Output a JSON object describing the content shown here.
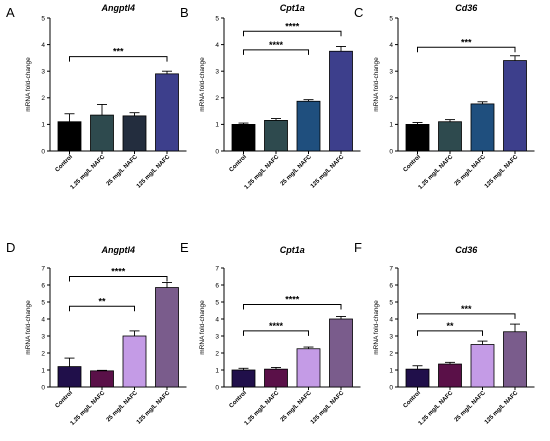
{
  "chart_data": [
    {
      "type": "bar",
      "panel": "A",
      "title": "Angptl4",
      "ylabel": "mRNA fold-change",
      "categories": [
        "Control",
        "1.25 mg/L NAFC",
        "25 mg/L NAFC",
        "125 mg/L NAFC"
      ],
      "values": [
        1.1,
        1.35,
        1.32,
        2.9
      ],
      "errors": [
        0.3,
        0.4,
        0.12,
        0.1
      ],
      "colors": [
        "#000000",
        "#2e4a4e",
        "#232d3e",
        "#3d3f8c"
      ],
      "ylim": [
        0,
        5
      ],
      "yticks": [
        "0",
        "1",
        "2",
        "3",
        "4",
        "5"
      ],
      "significance": [
        {
          "from": 0,
          "to": 3,
          "label": "***",
          "y": 3.55
        }
      ]
    },
    {
      "type": "bar",
      "panel": "B",
      "title": "Cpt1a",
      "ylabel": "mRNA fold-change",
      "categories": [
        "Control",
        "1.25 mg/L NAFC",
        "25 mg/L NAFC",
        "125 mg/L NAFC"
      ],
      "values": [
        1.0,
        1.15,
        1.87,
        3.75
      ],
      "errors": [
        0.05,
        0.07,
        0.06,
        0.18
      ],
      "colors": [
        "#000000",
        "#2e4a4e",
        "#1f4f7e",
        "#3d3f8c"
      ],
      "ylim": [
        0,
        5
      ],
      "yticks": [
        "0",
        "1",
        "2",
        "3",
        "4",
        "5"
      ],
      "significance": [
        {
          "from": 0,
          "to": 2,
          "label": "****",
          "y": 3.8
        },
        {
          "from": 0,
          "to": 3,
          "label": "****",
          "y": 4.5
        }
      ]
    },
    {
      "type": "bar",
      "panel": "C",
      "title": "Cd36",
      "ylabel": "mRNA fold-change",
      "categories": [
        "Control",
        "1.25 mg/L NAFC",
        "25 mg/L NAFC",
        "125 mg/L NAFC"
      ],
      "values": [
        1.0,
        1.1,
        1.77,
        3.4
      ],
      "errors": [
        0.07,
        0.08,
        0.08,
        0.18
      ],
      "colors": [
        "#000000",
        "#2e4a4e",
        "#1f4f7e",
        "#3d3f8c"
      ],
      "ylim": [
        0,
        5
      ],
      "yticks": [
        "0",
        "1",
        "2",
        "3",
        "4",
        "5"
      ],
      "significance": [
        {
          "from": 0,
          "to": 3,
          "label": "***",
          "y": 3.9
        }
      ]
    },
    {
      "type": "bar",
      "panel": "D",
      "title": "Angptl4",
      "ylabel": "mRNA fold-change",
      "categories": [
        "Control",
        "1.25 mg/L NAFC",
        "25 mg/L NAFC",
        "125 mg/L NAFC"
      ],
      "values": [
        1.2,
        0.95,
        3.0,
        5.85
      ],
      "errors": [
        0.5,
        0.03,
        0.3,
        0.3
      ],
      "colors": [
        "#200f4a",
        "#5a1048",
        "#c49be6",
        "#7a5c8c"
      ],
      "ylim": [
        0,
        7
      ],
      "yticks": [
        "0",
        "1",
        "2",
        "3",
        "4",
        "5",
        "6",
        "7"
      ],
      "significance": [
        {
          "from": 0,
          "to": 2,
          "label": "**",
          "y": 4.75
        },
        {
          "from": 0,
          "to": 3,
          "label": "****",
          "y": 6.5
        }
      ]
    },
    {
      "type": "bar",
      "panel": "E",
      "title": "Cpt1a",
      "ylabel": "mRNA fold-change",
      "categories": [
        "Control",
        "1.25 mg/L NAFC",
        "25 mg/L NAFC",
        "125 mg/L NAFC"
      ],
      "values": [
        1.0,
        1.05,
        2.25,
        4.0
      ],
      "errors": [
        0.1,
        0.1,
        0.1,
        0.15
      ],
      "colors": [
        "#200f4a",
        "#5a1048",
        "#c49be6",
        "#7a5c8c"
      ],
      "ylim": [
        0,
        7
      ],
      "yticks": [
        "0",
        "1",
        "2",
        "3",
        "4",
        "5",
        "6",
        "7"
      ],
      "significance": [
        {
          "from": 0,
          "to": 2,
          "label": "****",
          "y": 3.3
        },
        {
          "from": 0,
          "to": 3,
          "label": "****",
          "y": 4.85
        }
      ]
    },
    {
      "type": "bar",
      "panel": "F",
      "title": "Cd36",
      "ylabel": "mRNA fold-change",
      "categories": [
        "Control",
        "1.25 mg/L NAFC",
        "25 mg/L NAFC",
        "125 mg/L NAFC"
      ],
      "values": [
        1.05,
        1.35,
        2.5,
        3.25
      ],
      "errors": [
        0.2,
        0.1,
        0.2,
        0.45
      ],
      "colors": [
        "#200f4a",
        "#5a1048",
        "#c49be6",
        "#7a5c8c"
      ],
      "ylim": [
        0,
        7
      ],
      "yticks": [
        "0",
        "1",
        "2",
        "3",
        "4",
        "5",
        "6",
        "7"
      ],
      "significance": [
        {
          "from": 0,
          "to": 2,
          "label": "**",
          "y": 3.3
        },
        {
          "from": 0,
          "to": 3,
          "label": "***",
          "y": 4.3
        }
      ]
    }
  ]
}
